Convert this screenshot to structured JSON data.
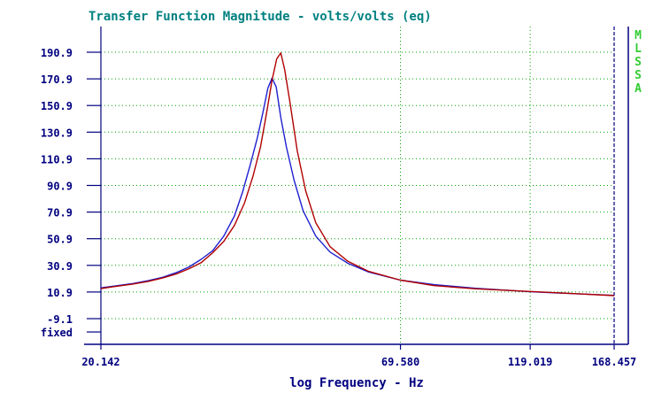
{
  "chart_data": {
    "type": "line",
    "title": "Transfer Function Magnitude - volts/volts (eq)",
    "xlabel": "log Frequency - Hz",
    "ylabel": "",
    "x_scale": "log",
    "xlim": [
      20.142,
      168.457
    ],
    "ylim": [
      -19.1,
      200.9
    ],
    "x_ticks": [
      "20.142",
      "69.580",
      "119.019",
      "168.457"
    ],
    "x_tick_values": [
      20.142,
      69.58,
      119.019,
      168.457
    ],
    "y_ticks": [
      "190.9",
      "170.9",
      "150.9",
      "130.9",
      "110.9",
      "90.9",
      "70.9",
      "50.9",
      "30.9",
      "10.9",
      "-9.1",
      "fixed"
    ],
    "y_tick_values": [
      190.9,
      170.9,
      150.9,
      130.9,
      110.9,
      90.9,
      70.9,
      50.9,
      30.9,
      10.9,
      -9.1,
      -19.1
    ],
    "grid": true,
    "side_label": [
      "M",
      "L",
      "S",
      "S",
      "A"
    ],
    "colors": {
      "axis": "#000080",
      "title": "#008080",
      "grid": "#00a000",
      "side_label": "#33cc33",
      "series_blue": "#1f1fd0",
      "series_red": "#b00000"
    },
    "series": [
      {
        "color": "#1f1fd0",
        "x": [
          20.142,
          21.5,
          23,
          24.5,
          26,
          27.5,
          29,
          30.5,
          32,
          33.5,
          35,
          36.2,
          37.4,
          38.5,
          39.4,
          40.2,
          40.9,
          41.6,
          42.4,
          43.4,
          44.8,
          46.5,
          49,
          52,
          56,
          61,
          69.58,
          80,
          95,
          119.019,
          140,
          168.457
        ],
        "y": [
          14,
          15.6,
          17.3,
          19.4,
          21.9,
          25.4,
          29.7,
          35.4,
          41.9,
          52.9,
          68,
          85.9,
          106.9,
          126.9,
          145.9,
          163.9,
          171.4,
          164.9,
          141.9,
          119.9,
          94.9,
          71.9,
          52.9,
          40.9,
          32.4,
          25.9,
          19.8,
          16.4,
          13.7,
          11.1,
          9.8,
          8.4
        ]
      },
      {
        "color": "#b00000",
        "x": [
          20.142,
          21.5,
          23,
          24.5,
          26,
          27.5,
          29,
          30.5,
          32,
          33.5,
          35,
          36.5,
          37.8,
          39,
          40,
          40.9,
          41.7,
          42.4,
          43.1,
          44.1,
          45.4,
          47,
          49,
          52,
          56,
          61,
          69.58,
          80,
          95,
          119.019,
          140,
          168.457
        ],
        "y": [
          13.5,
          15.2,
          16.9,
          18.9,
          21.4,
          24.4,
          28.4,
          32.9,
          40.4,
          48.9,
          60.9,
          77.9,
          97.9,
          119.9,
          145.9,
          169.9,
          185.9,
          190.4,
          177.9,
          151.9,
          116.9,
          86.9,
          62.9,
          44.9,
          33.9,
          26.4,
          19.8,
          15.7,
          13.3,
          11.3,
          9.9,
          8.2
        ]
      }
    ]
  }
}
